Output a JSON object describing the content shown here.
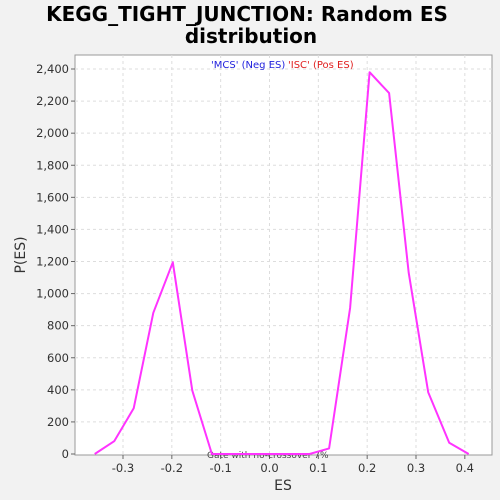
{
  "chart_data": {
    "type": "line",
    "title_line1": "KEGG_TIGHT_JUNCTION: Random ES",
    "title_line2": "distribution",
    "xlabel": "ES",
    "ylabel": "P(ES)",
    "legend_neg": "'MCS' (Neg ES)",
    "legend_pos": "'ISC' (Pos ES)",
    "note": "Gate with no-crossover 7%",
    "xlim": [
      -0.4,
      0.45
    ],
    "ylim": [
      0,
      2480
    ],
    "x_ticks": [
      -0.3,
      -0.2,
      -0.1,
      0.0,
      0.1,
      0.2,
      0.3,
      0.4
    ],
    "x_tick_labels": [
      "-0.3",
      "-0.2",
      "-0.1",
      "0.0",
      "0.1",
      "0.2",
      "0.3",
      "0.4"
    ],
    "y_ticks": [
      0,
      200,
      400,
      600,
      800,
      1000,
      1200,
      1400,
      1600,
      1800,
      2000,
      2200,
      2400
    ],
    "y_tick_labels": [
      "0",
      "200",
      "400",
      "600",
      "800",
      "1,000",
      "1,200",
      "1,400",
      "1,600",
      "1,800",
      "2,000",
      "2,200",
      "2,400"
    ],
    "grid": true,
    "line_color": "#ff33ff",
    "series": [
      {
        "x": [
          -0.358,
          -0.318,
          -0.278,
          -0.238,
          -0.198,
          -0.158,
          -0.118,
          -0.078,
          -0.038,
          0.002,
          0.042,
          0.082,
          0.122,
          0.165,
          0.205,
          0.245,
          0.285,
          0.325,
          0.368,
          0.408
        ],
        "y": [
          0,
          80,
          285,
          880,
          1195,
          395,
          0,
          0,
          0,
          0,
          0,
          0,
          35,
          910,
          2380,
          2250,
          1130,
          385,
          70,
          0
        ]
      }
    ]
  }
}
